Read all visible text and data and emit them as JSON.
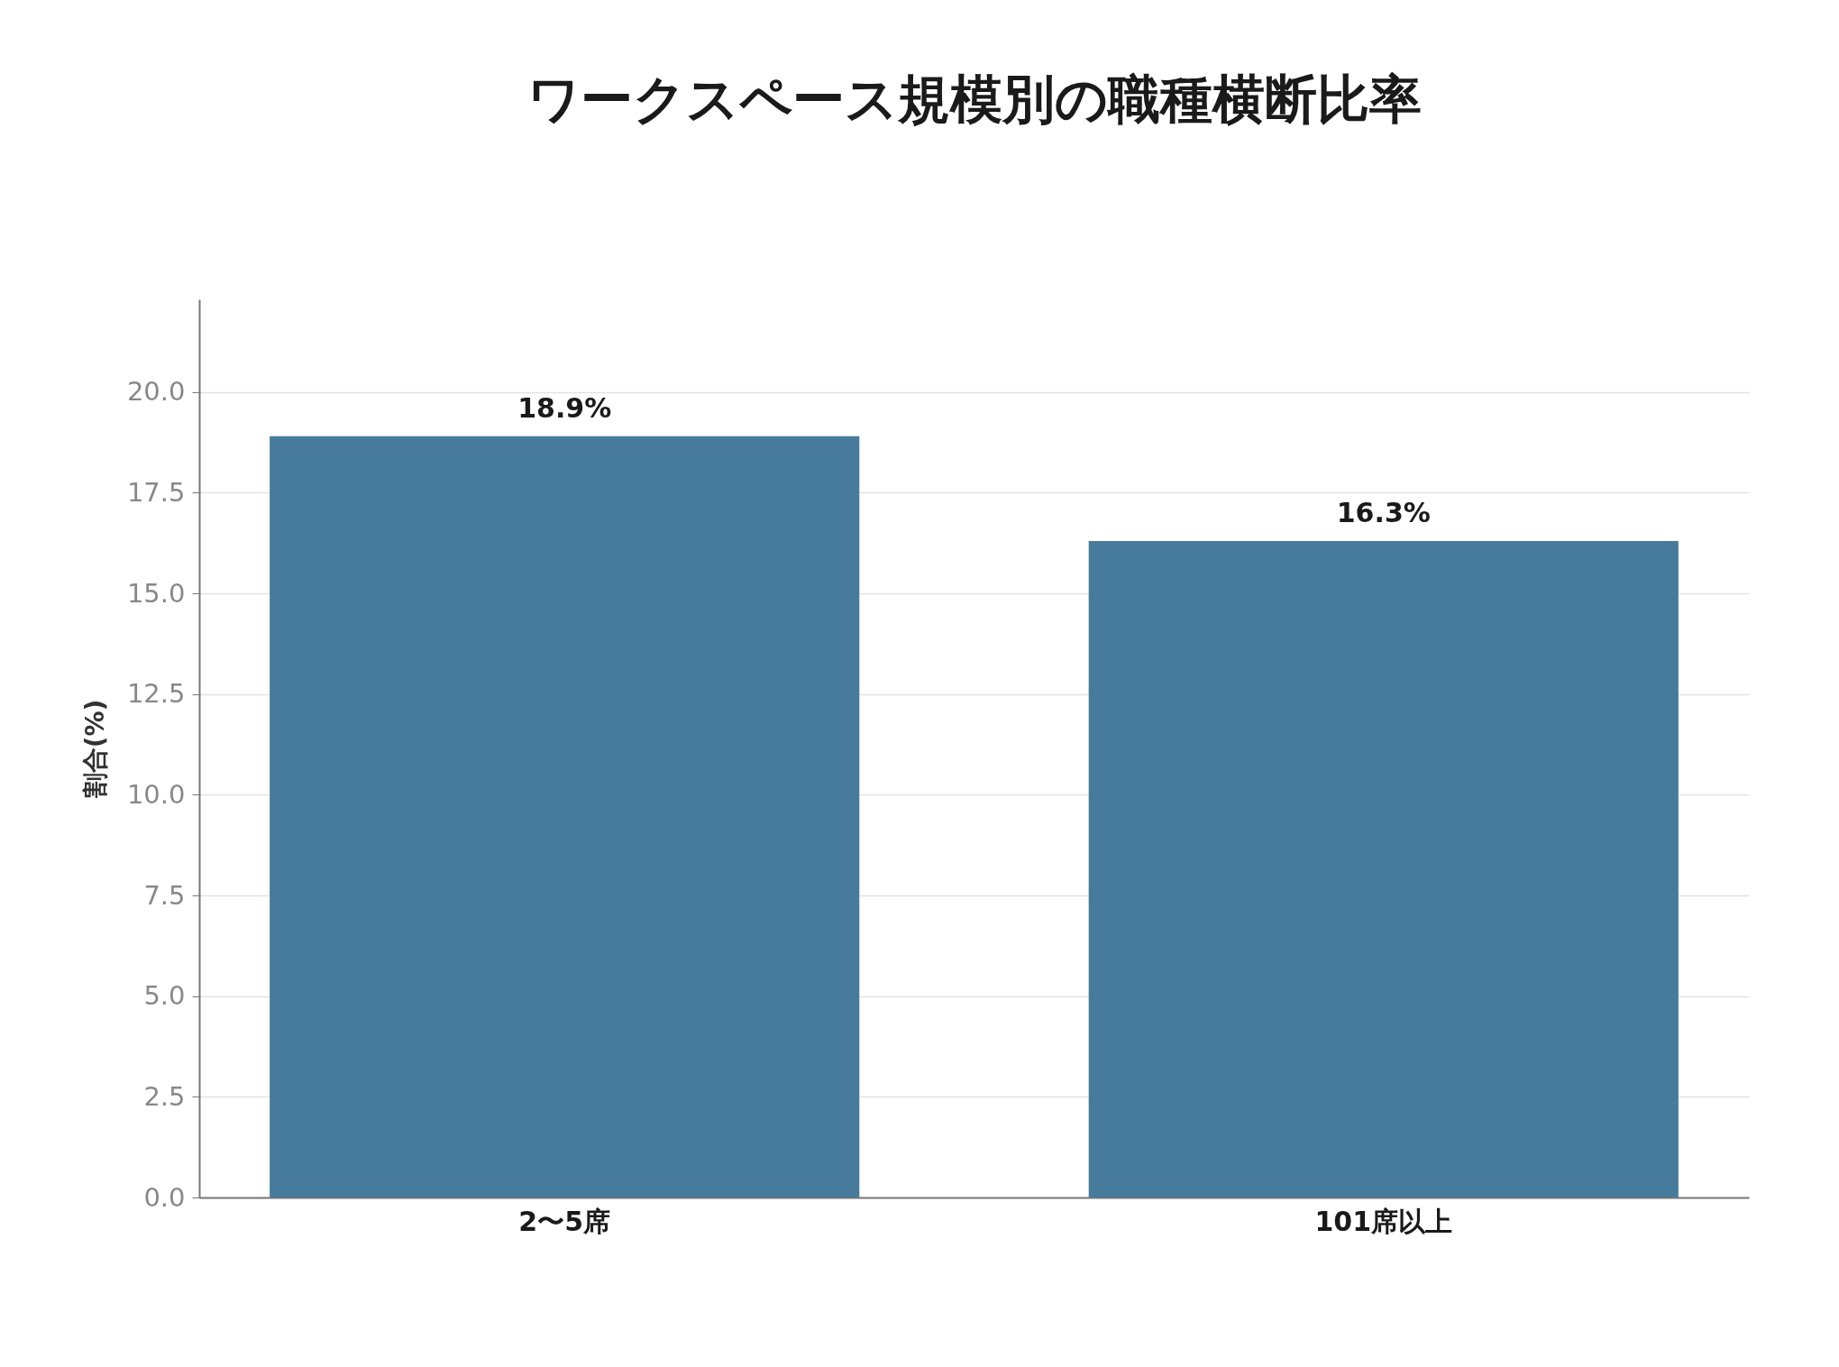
{
  "chart_data": {
    "type": "bar",
    "title": "ワークスペース規模別の職種横断比率",
    "ylabel": "割合(%)",
    "categories": [
      "2〜5席",
      "101席以上"
    ],
    "values": [
      18.9,
      16.3
    ],
    "value_labels": [
      "18.9%",
      "16.3%"
    ],
    "color": "#467b9c",
    "ylim": [
      0,
      22.3
    ],
    "yticks": [
      {
        "value": 0,
        "label": "0.0"
      },
      {
        "value": 2.5,
        "label": "2.5"
      },
      {
        "value": 5,
        "label": "5.0"
      },
      {
        "value": 7.5,
        "label": "7.5"
      },
      {
        "value": 10,
        "label": "10.0"
      },
      {
        "value": 12.5,
        "label": "12.5"
      },
      {
        "value": 15,
        "label": "15.0"
      },
      {
        "value": 17.5,
        "label": "17.5"
      },
      {
        "value": 20,
        "label": "20.0"
      }
    ],
    "grid": "y"
  }
}
